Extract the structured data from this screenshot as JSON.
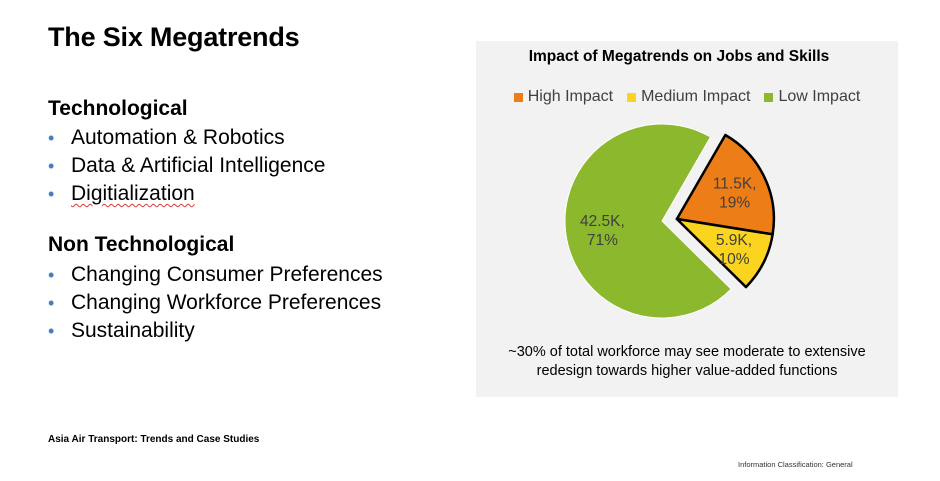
{
  "slide": {
    "title": "The Six Megatrends",
    "sections": [
      {
        "heading": "Technological",
        "items": [
          "Automation & Robotics",
          "Data & Artificial Intelligence",
          "Digitialization"
        ]
      },
      {
        "heading": "Non Technological",
        "items": [
          "Changing Consumer Preferences",
          "Changing Workforce Preferences",
          "Sustainability"
        ]
      }
    ],
    "bullet_glyph": "•",
    "source": "Asia Air Transport: Trends and Case Studies",
    "classification": "Information Classification: General"
  },
  "chart_data": {
    "type": "pie",
    "title": "Impact of Megatrends on Jobs and Skills",
    "legend_position": "top",
    "slices": [
      {
        "name": "High Impact",
        "value": 11.5,
        "value_label": "11.5K,",
        "percent_label": "19%",
        "color": "#ed7d17",
        "exploded": true
      },
      {
        "name": "Medium Impact",
        "value": 5.9,
        "value_label": "5.9K,",
        "percent_label": "10%",
        "color": "#fad41e",
        "exploded": true
      },
      {
        "name": "Low Impact",
        "value": 42.5,
        "value_label": "42.5K,",
        "percent_label": "71%",
        "color": "#8cb82e",
        "exploded": false
      }
    ],
    "note_lines": [
      "~30% of total workforce may see moderate to extensive",
      "redesign towards higher value-added functions"
    ]
  }
}
